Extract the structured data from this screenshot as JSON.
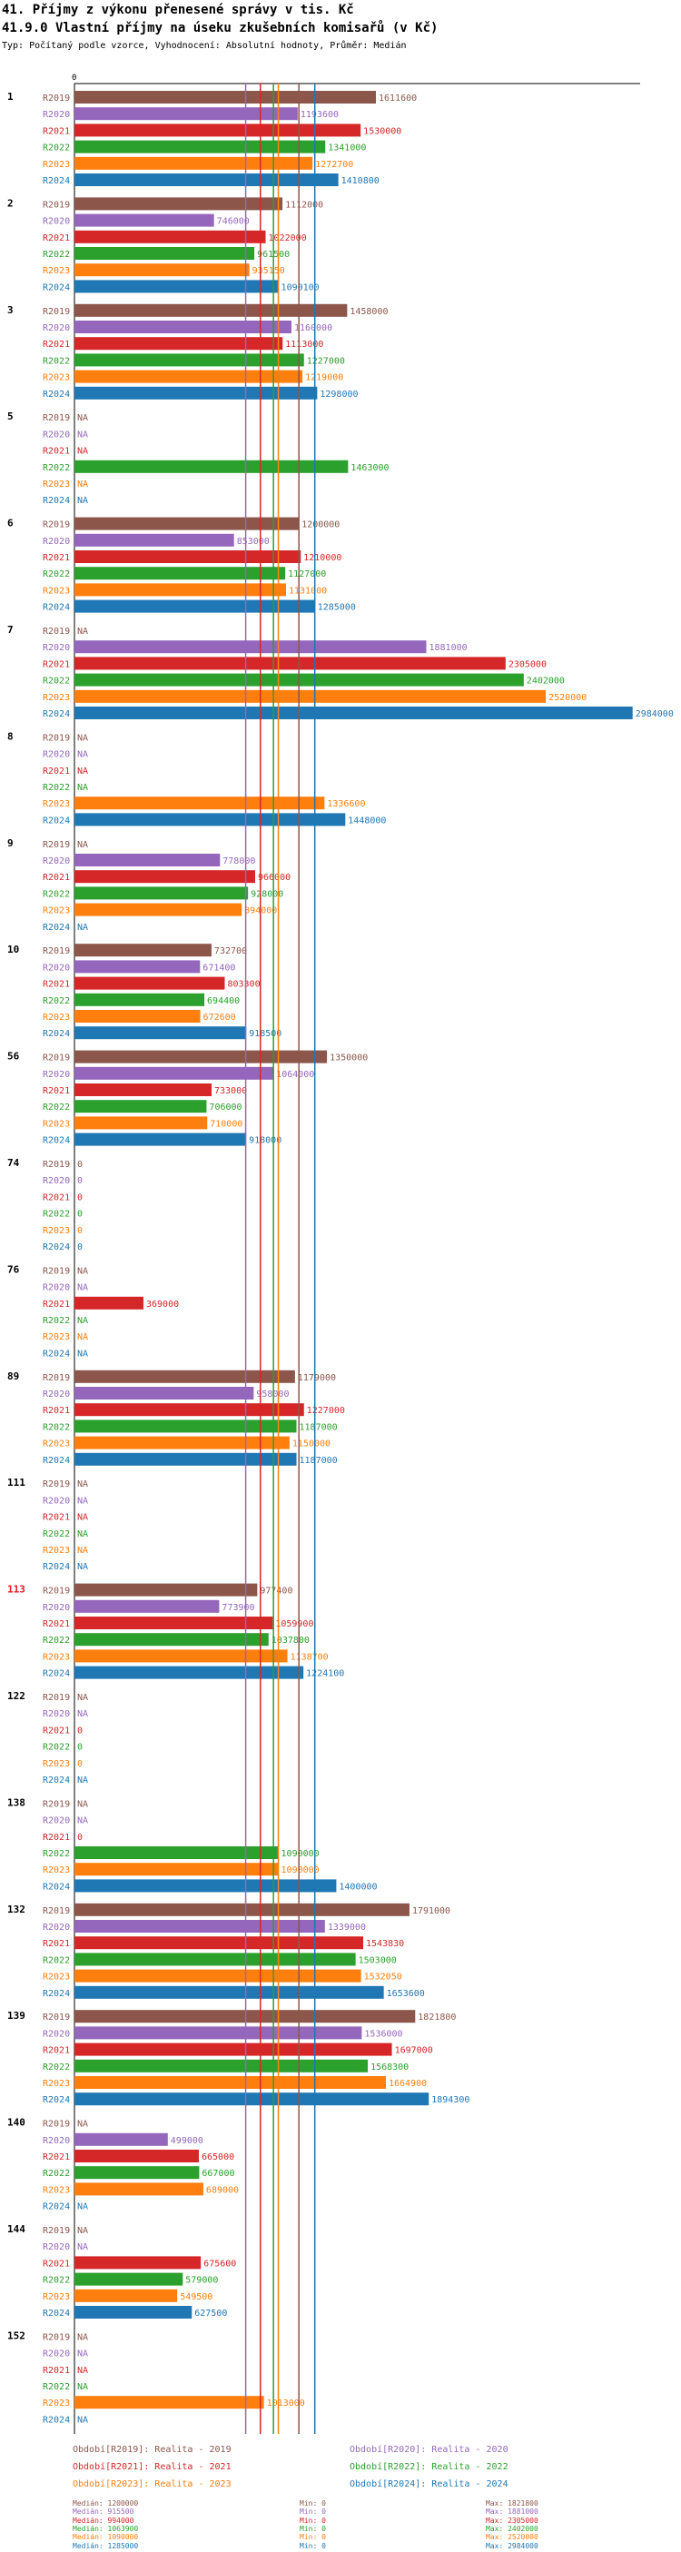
{
  "title": "41. Příjmy z výkonu přenesené správy v tis. Kč",
  "subtitle": "41.9.0 Vlastní příjmy na úseku zkušebních komisařů (v Kč)",
  "meta": "Typ: Počítaný podle vzorce, Vyhodnocení: Absolutní hodnoty, Průměr: Medián",
  "colors": {
    "R2019": "#8c564b",
    "R2020": "#9467bd",
    "R2021": "#d62728",
    "R2022": "#2ca02c",
    "R2023": "#ff7f0e",
    "R2024": "#1f77b4"
  },
  "chart_data": {
    "type": "bar",
    "orientation": "horizontal",
    "axis_zero_label": "0",
    "xlim": [
      0,
      2984000
    ],
    "series_names": [
      "R2019",
      "R2020",
      "R2021",
      "R2022",
      "R2023",
      "R2024"
    ],
    "highlight_group": "113",
    "groups": [
      {
        "id": "1",
        "values": [
          1611600,
          1193600,
          1530000,
          1341000,
          1272700,
          1410800
        ]
      },
      {
        "id": "2",
        "values": [
          1112000,
          746000,
          1022000,
          961500,
          935150,
          1090100
        ]
      },
      {
        "id": "3",
        "values": [
          1458000,
          1160000,
          1113000,
          1227000,
          1219000,
          1298000
        ]
      },
      {
        "id": "5",
        "values": [
          null,
          null,
          null,
          1463000,
          null,
          null
        ]
      },
      {
        "id": "6",
        "values": [
          1200000,
          853000,
          1210000,
          1127000,
          1131000,
          1285000
        ]
      },
      {
        "id": "7",
        "values": [
          null,
          1881000,
          2305000,
          2402000,
          2520000,
          2984000
        ]
      },
      {
        "id": "8",
        "values": [
          null,
          null,
          null,
          null,
          1336600,
          1448000
        ]
      },
      {
        "id": "9",
        "values": [
          null,
          778000,
          966000,
          928000,
          894000,
          null
        ]
      },
      {
        "id": "10",
        "values": [
          732700,
          671400,
          803300,
          694400,
          672600,
          918500
        ]
      },
      {
        "id": "56",
        "values": [
          1350000,
          1064000,
          733000,
          706000,
          710000,
          918000
        ]
      },
      {
        "id": "74",
        "values": [
          0,
          0,
          0,
          0,
          0,
          0
        ]
      },
      {
        "id": "76",
        "values": [
          null,
          null,
          369000,
          null,
          null,
          null
        ]
      },
      {
        "id": "89",
        "values": [
          1179000,
          958000,
          1227000,
          1187000,
          1150000,
          1187000
        ]
      },
      {
        "id": "111",
        "values": [
          null,
          null,
          null,
          null,
          null,
          null
        ]
      },
      {
        "id": "113",
        "values": [
          977400,
          773900,
          1059900,
          1037800,
          1138700,
          1224100
        ]
      },
      {
        "id": "122",
        "values": [
          null,
          null,
          0,
          0,
          0,
          null
        ]
      },
      {
        "id": "138",
        "values": [
          null,
          null,
          0,
          1090000,
          1090000,
          1400000
        ]
      },
      {
        "id": "132",
        "values": [
          1791000,
          1339000,
          1543830,
          1503000,
          1532050,
          1653600
        ]
      },
      {
        "id": "139",
        "values": [
          1821800,
          1536000,
          1697000,
          1568300,
          1664900,
          1894300
        ]
      },
      {
        "id": "140",
        "values": [
          null,
          499000,
          665000,
          667000,
          689000,
          null
        ]
      },
      {
        "id": "144",
        "values": [
          null,
          null,
          675600,
          579000,
          549500,
          627500
        ]
      },
      {
        "id": "152",
        "values": [
          null,
          null,
          null,
          null,
          1013000,
          null
        ]
      }
    ],
    "medians": [
      1200000,
      915500,
      994000,
      1063900,
      1090000,
      1285000
    ],
    "na_label": "NA"
  },
  "legend": {
    "items": [
      "Období[R2019]: Realita - 2019",
      "Období[R2020]: Realita - 2020",
      "Období[R2021]: Realita - 2021",
      "Období[R2022]: Realita - 2022",
      "Období[R2023]: Realita - 2023",
      "Období[R2024]: Realita - 2024"
    ]
  },
  "stats": [
    {
      "median": "Medián: 1200000",
      "min": "Min: 0",
      "max": "Max: 1821800"
    },
    {
      "median": "Medián: 915500",
      "min": "Min: 0",
      "max": "Max: 1881000"
    },
    {
      "median": "Medián: 994000",
      "min": "Min: 0",
      "max": "Max: 2305000"
    },
    {
      "median": "Medián: 1063900",
      "min": "Min: 0",
      "max": "Max: 2402000"
    },
    {
      "median": "Medián: 1090000",
      "min": "Min: 0",
      "max": "Max: 2520000"
    },
    {
      "median": "Medián: 1285000",
      "min": "Min: 0",
      "max": "Max: 2984000"
    }
  ]
}
